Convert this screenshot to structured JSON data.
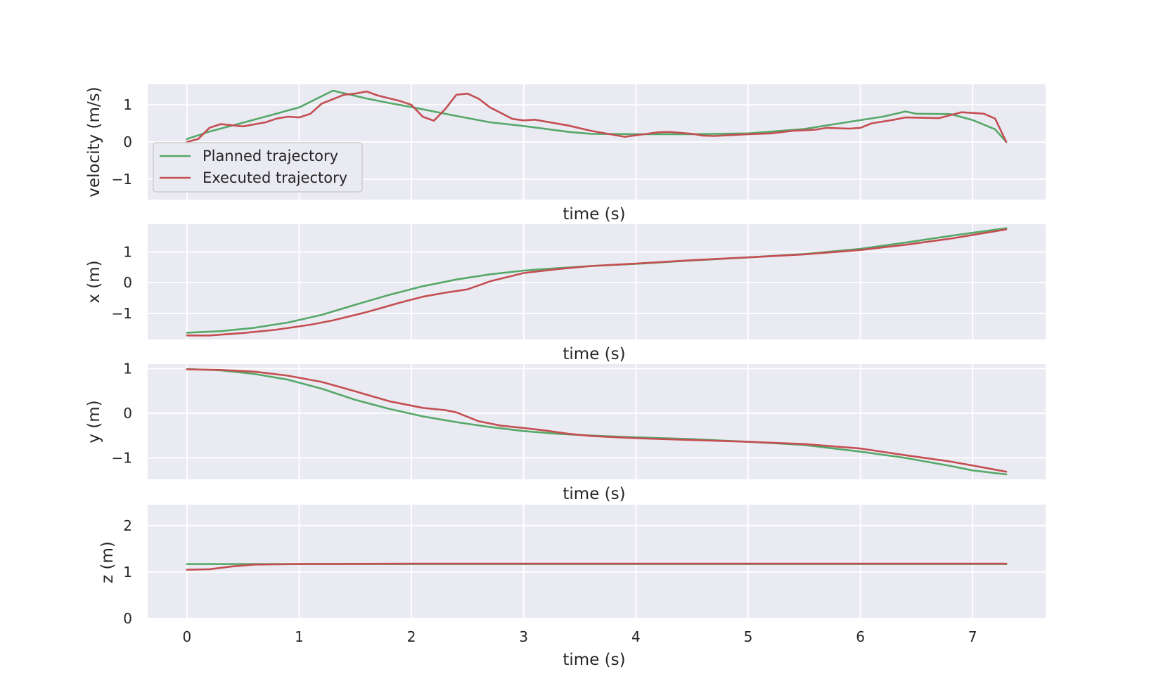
{
  "colors": {
    "background": "#ffffff",
    "plot_area": "#eaeaf2",
    "grid": "#ffffff",
    "text": "#262626",
    "legend_bg": "#eaeaf2",
    "legend_border": "#cccccc"
  },
  "legend": {
    "placement": "lower-left of first subplot",
    "entries": [
      {
        "label": "Planned trajectory",
        "color": "#55a868"
      },
      {
        "label": "Executed trajectory",
        "color": "#c44e52"
      }
    ]
  },
  "chart_data": [
    {
      "type": "line",
      "xlabel": "time (s)",
      "ylabel": "velocity (m/s)",
      "xlim": [
        -0.35,
        7.65
      ],
      "ylim": [
        -1.55,
        1.55
      ],
      "xticks": [
        0,
        1,
        2,
        3,
        4,
        5,
        6,
        7
      ],
      "yticks": [
        -1,
        0,
        1
      ],
      "show_xtick_labels": false,
      "grid": true,
      "legend": "lower-left",
      "series": [
        {
          "name": "Planned trajectory",
          "color": "#55a868",
          "points": [
            [
              0,
              0.08
            ],
            [
              0.2,
              0.28
            ],
            [
              0.6,
              0.6
            ],
            [
              1.0,
              0.93
            ],
            [
              1.3,
              1.38
            ],
            [
              1.6,
              1.17
            ],
            [
              1.8,
              1.05
            ],
            [
              2.0,
              0.94
            ],
            [
              2.4,
              0.7
            ],
            [
              2.7,
              0.53
            ],
            [
              3.0,
              0.43
            ],
            [
              3.4,
              0.27
            ],
            [
              3.6,
              0.22
            ],
            [
              4.0,
              0.21
            ],
            [
              4.5,
              0.21
            ],
            [
              5.0,
              0.23
            ],
            [
              5.5,
              0.35
            ],
            [
              5.9,
              0.54
            ],
            [
              6.2,
              0.68
            ],
            [
              6.4,
              0.82
            ],
            [
              6.5,
              0.76
            ],
            [
              6.8,
              0.75
            ],
            [
              7.0,
              0.59
            ],
            [
              7.2,
              0.34
            ],
            [
              7.3,
              0.0
            ]
          ]
        },
        {
          "name": "Executed trajectory",
          "color": "#c44e52",
          "points": [
            [
              0,
              0.0
            ],
            [
              0.1,
              0.08
            ],
            [
              0.2,
              0.38
            ],
            [
              0.3,
              0.48
            ],
            [
              0.5,
              0.42
            ],
            [
              0.7,
              0.53
            ],
            [
              0.8,
              0.63
            ],
            [
              0.9,
              0.68
            ],
            [
              1.0,
              0.66
            ],
            [
              1.1,
              0.76
            ],
            [
              1.2,
              1.03
            ],
            [
              1.4,
              1.27
            ],
            [
              1.5,
              1.3
            ],
            [
              1.6,
              1.36
            ],
            [
              1.7,
              1.25
            ],
            [
              1.9,
              1.1
            ],
            [
              2.0,
              1.0
            ],
            [
              2.1,
              0.68
            ],
            [
              2.2,
              0.57
            ],
            [
              2.3,
              0.88
            ],
            [
              2.4,
              1.27
            ],
            [
              2.5,
              1.3
            ],
            [
              2.6,
              1.16
            ],
            [
              2.7,
              0.93
            ],
            [
              2.9,
              0.62
            ],
            [
              3.0,
              0.58
            ],
            [
              3.1,
              0.6
            ],
            [
              3.4,
              0.44
            ],
            [
              3.6,
              0.3
            ],
            [
              3.9,
              0.14
            ],
            [
              4.0,
              0.18
            ],
            [
              4.2,
              0.26
            ],
            [
              4.3,
              0.27
            ],
            [
              4.5,
              0.22
            ],
            [
              4.6,
              0.17
            ],
            [
              4.7,
              0.16
            ],
            [
              5.0,
              0.21
            ],
            [
              5.2,
              0.23
            ],
            [
              5.4,
              0.3
            ],
            [
              5.6,
              0.33
            ],
            [
              5.7,
              0.38
            ],
            [
              5.9,
              0.36
            ],
            [
              6.0,
              0.38
            ],
            [
              6.1,
              0.5
            ],
            [
              6.3,
              0.6
            ],
            [
              6.4,
              0.66
            ],
            [
              6.7,
              0.64
            ],
            [
              6.8,
              0.72
            ],
            [
              6.9,
              0.8
            ],
            [
              7.0,
              0.78
            ],
            [
              7.1,
              0.76
            ],
            [
              7.2,
              0.63
            ],
            [
              7.3,
              0.0
            ]
          ]
        }
      ]
    },
    {
      "type": "line",
      "xlabel": "time (s)",
      "ylabel": "x (m)",
      "xlim": [
        -0.35,
        7.65
      ],
      "ylim": [
        -1.85,
        1.9
      ],
      "xticks": [
        0,
        1,
        2,
        3,
        4,
        5,
        6,
        7
      ],
      "yticks": [
        -1,
        0,
        1
      ],
      "show_xtick_labels": false,
      "grid": true,
      "series": [
        {
          "name": "Planned trajectory",
          "color": "#55a868",
          "points": [
            [
              0,
              -1.63
            ],
            [
              0.3,
              -1.58
            ],
            [
              0.6,
              -1.47
            ],
            [
              0.9,
              -1.3
            ],
            [
              1.2,
              -1.05
            ],
            [
              1.5,
              -0.72
            ],
            [
              1.8,
              -0.4
            ],
            [
              2.1,
              -0.12
            ],
            [
              2.4,
              0.1
            ],
            [
              2.7,
              0.27
            ],
            [
              3.0,
              0.39
            ],
            [
              3.3,
              0.47
            ],
            [
              3.6,
              0.54
            ],
            [
              4.0,
              0.61
            ],
            [
              4.5,
              0.72
            ],
            [
              5.0,
              0.82
            ],
            [
              5.5,
              0.93
            ],
            [
              6.0,
              1.1
            ],
            [
              6.4,
              1.3
            ],
            [
              6.8,
              1.52
            ],
            [
              7.0,
              1.62
            ],
            [
              7.3,
              1.77
            ]
          ]
        },
        {
          "name": "Executed trajectory",
          "color": "#c44e52",
          "points": [
            [
              0,
              -1.72
            ],
            [
              0.2,
              -1.72
            ],
            [
              0.5,
              -1.64
            ],
            [
              0.8,
              -1.53
            ],
            [
              1.1,
              -1.37
            ],
            [
              1.3,
              -1.23
            ],
            [
              1.6,
              -0.96
            ],
            [
              1.9,
              -0.65
            ],
            [
              2.1,
              -0.46
            ],
            [
              2.3,
              -0.33
            ],
            [
              2.5,
              -0.22
            ],
            [
              2.7,
              0.04
            ],
            [
              3.0,
              0.31
            ],
            [
              3.3,
              0.44
            ],
            [
              3.6,
              0.54
            ],
            [
              4.0,
              0.62
            ],
            [
              4.5,
              0.73
            ],
            [
              5.0,
              0.82
            ],
            [
              5.5,
              0.92
            ],
            [
              6.0,
              1.06
            ],
            [
              6.4,
              1.23
            ],
            [
              6.8,
              1.43
            ],
            [
              7.0,
              1.55
            ],
            [
              7.3,
              1.73
            ]
          ]
        }
      ]
    },
    {
      "type": "line",
      "xlabel": "time (s)",
      "ylabel": "y (m)",
      "xlim": [
        -0.35,
        7.65
      ],
      "ylim": [
        -1.48,
        1.1
      ],
      "xticks": [
        0,
        1,
        2,
        3,
        4,
        5,
        6,
        7
      ],
      "yticks": [
        -1,
        0,
        1
      ],
      "show_xtick_labels": false,
      "grid": true,
      "series": [
        {
          "name": "Planned trajectory",
          "color": "#55a868",
          "points": [
            [
              0,
              0.99
            ],
            [
              0.3,
              0.96
            ],
            [
              0.6,
              0.88
            ],
            [
              0.9,
              0.75
            ],
            [
              1.2,
              0.55
            ],
            [
              1.5,
              0.3
            ],
            [
              1.8,
              0.1
            ],
            [
              2.1,
              -0.07
            ],
            [
              2.4,
              -0.2
            ],
            [
              2.7,
              -0.31
            ],
            [
              3.0,
              -0.4
            ],
            [
              3.3,
              -0.46
            ],
            [
              3.6,
              -0.5
            ],
            [
              4.0,
              -0.54
            ],
            [
              4.5,
              -0.58
            ],
            [
              5.0,
              -0.64
            ],
            [
              5.5,
              -0.71
            ],
            [
              6.0,
              -0.86
            ],
            [
              6.4,
              -1.0
            ],
            [
              6.8,
              -1.18
            ],
            [
              7.0,
              -1.28
            ],
            [
              7.3,
              -1.37
            ]
          ]
        },
        {
          "name": "Executed trajectory",
          "color": "#c44e52",
          "points": [
            [
              0,
              0.98
            ],
            [
              0.3,
              0.97
            ],
            [
              0.6,
              0.93
            ],
            [
              0.9,
              0.84
            ],
            [
              1.2,
              0.7
            ],
            [
              1.5,
              0.49
            ],
            [
              1.8,
              0.27
            ],
            [
              2.1,
              0.12
            ],
            [
              2.3,
              0.07
            ],
            [
              2.4,
              0.02
            ],
            [
              2.6,
              -0.18
            ],
            [
              2.8,
              -0.28
            ],
            [
              3.0,
              -0.33
            ],
            [
              3.2,
              -0.39
            ],
            [
              3.4,
              -0.46
            ],
            [
              3.6,
              -0.51
            ],
            [
              4.0,
              -0.56
            ],
            [
              4.5,
              -0.6
            ],
            [
              5.0,
              -0.64
            ],
            [
              5.5,
              -0.69
            ],
            [
              6.0,
              -0.79
            ],
            [
              6.4,
              -0.94
            ],
            [
              6.8,
              -1.08
            ],
            [
              7.0,
              -1.17
            ],
            [
              7.3,
              -1.31
            ]
          ]
        }
      ]
    },
    {
      "type": "line",
      "xlabel": "time (s)",
      "ylabel": "z (m)",
      "xlim": [
        -0.35,
        7.65
      ],
      "ylim": [
        0,
        2.45
      ],
      "xticks": [
        0,
        1,
        2,
        3,
        4,
        5,
        6,
        7
      ],
      "yticks": [
        0,
        1,
        2
      ],
      "show_xtick_labels": true,
      "grid": true,
      "series": [
        {
          "name": "Planned trajectory",
          "color": "#55a868",
          "points": [
            [
              0,
              1.17
            ],
            [
              1.0,
              1.17
            ],
            [
              2.0,
              1.17
            ],
            [
              3.0,
              1.17
            ],
            [
              4.0,
              1.17
            ],
            [
              5.0,
              1.17
            ],
            [
              6.0,
              1.17
            ],
            [
              7.0,
              1.17
            ],
            [
              7.3,
              1.17
            ]
          ]
        },
        {
          "name": "Executed trajectory",
          "color": "#c44e52",
          "points": [
            [
              0,
              1.05
            ],
            [
              0.2,
              1.06
            ],
            [
              0.4,
              1.12
            ],
            [
              0.6,
              1.16
            ],
            [
              1.0,
              1.17
            ],
            [
              2.0,
              1.18
            ],
            [
              3.0,
              1.18
            ],
            [
              4.0,
              1.18
            ],
            [
              5.0,
              1.18
            ],
            [
              6.0,
              1.18
            ],
            [
              7.0,
              1.18
            ],
            [
              7.3,
              1.18
            ]
          ]
        }
      ]
    }
  ]
}
